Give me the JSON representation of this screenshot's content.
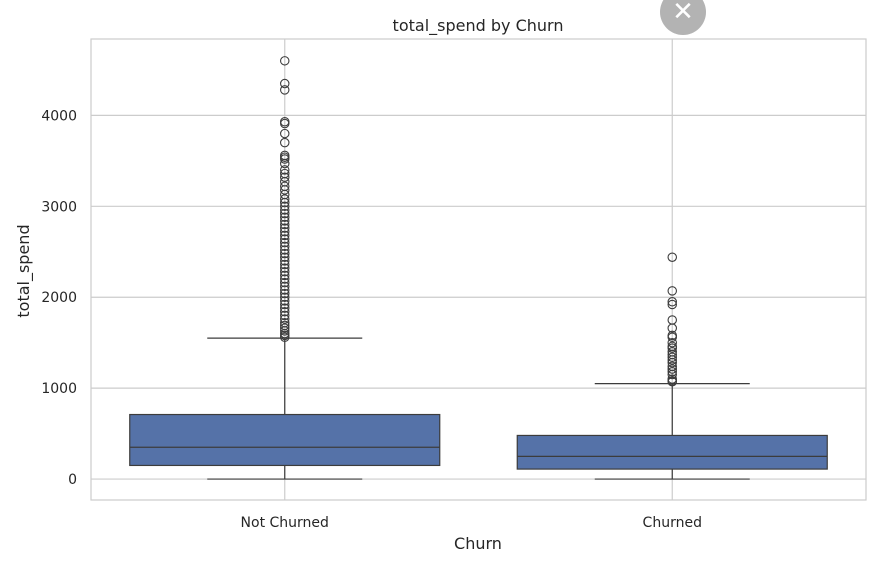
{
  "close_glyph": "✕",
  "chart_data": {
    "type": "box",
    "title": "total_spend by Churn",
    "xlabel": "Churn",
    "ylabel": "total_spend",
    "ylim": [
      -230,
      4840
    ],
    "yticks": [
      0,
      1000,
      2000,
      3000,
      4000
    ],
    "grid": true,
    "box_color": "#5572a8",
    "line_color": "#3c3c3c",
    "categories": [
      "Not Churned",
      "Churned"
    ],
    "boxes": [
      {
        "category": "Not Churned",
        "whisker_low": 0,
        "q1": 150,
        "median": 350,
        "q3": 710,
        "whisker_high": 1550,
        "outliers": [
          4600,
          4350,
          4280,
          3930,
          3910,
          3800,
          3700,
          3560,
          3540,
          3520,
          3470,
          3400,
          3360,
          3320,
          3270,
          3220,
          3180,
          3130,
          3080,
          3040,
          3000,
          2960,
          2920,
          2880,
          2840,
          2800,
          2760,
          2720,
          2680,
          2640,
          2600,
          2560,
          2520,
          2480,
          2440,
          2400,
          2360,
          2320,
          2280,
          2240,
          2200,
          2160,
          2120,
          2080,
          2040,
          2000,
          1960,
          1920,
          1880,
          1840,
          1800,
          1760,
          1720,
          1690,
          1660,
          1630,
          1600,
          1580,
          1560
        ]
      },
      {
        "category": "Churned",
        "whisker_low": 0,
        "q1": 110,
        "median": 250,
        "q3": 480,
        "whisker_high": 1050,
        "outliers": [
          2440,
          2070,
          1950,
          1920,
          1750,
          1660,
          1580,
          1560,
          1500,
          1460,
          1440,
          1400,
          1370,
          1340,
          1310,
          1280,
          1240,
          1210,
          1180,
          1150,
          1100,
          1080,
          1070
        ]
      }
    ]
  }
}
